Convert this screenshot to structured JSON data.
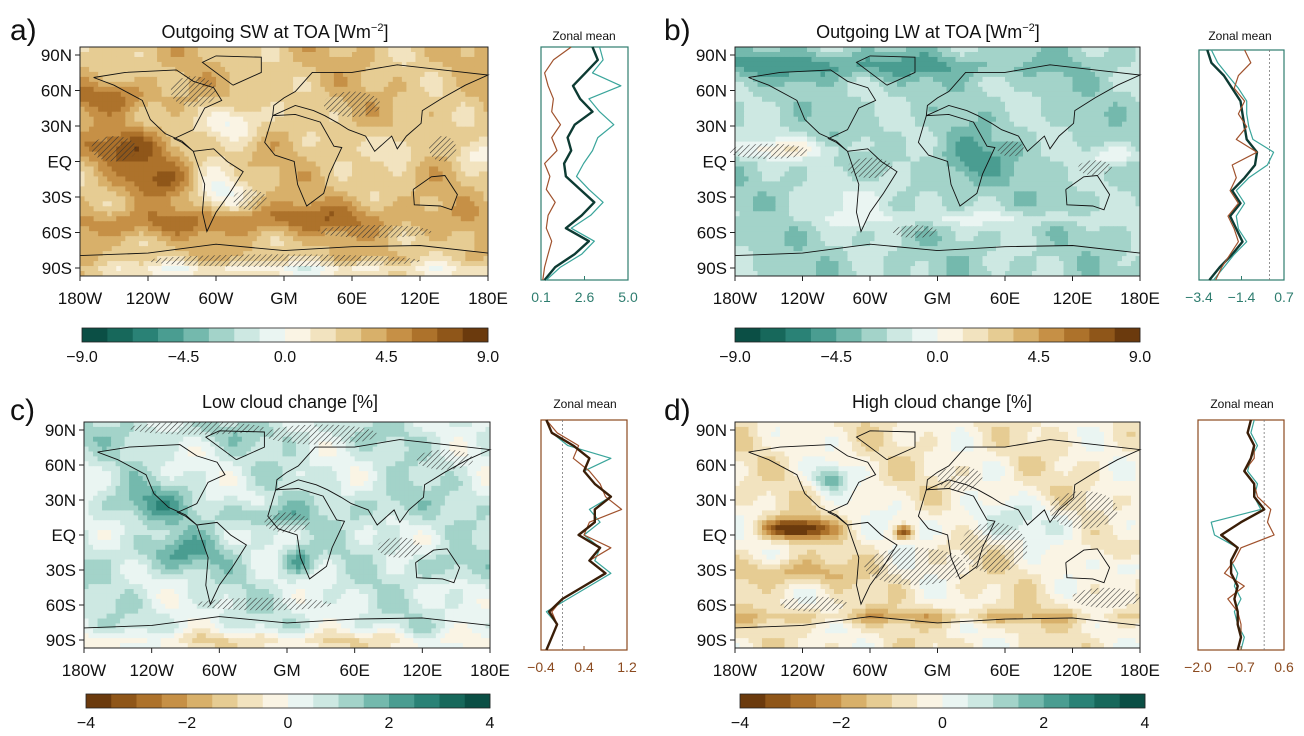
{
  "chart_data": [
    {
      "id": "a",
      "type": "heatmap",
      "panel_letter": "a)",
      "title_main": "Outgoing SW at TOA [Wm",
      "title_sup": "−2",
      "title_end": "]",
      "xtick_labels": [
        "180W",
        "120W",
        "60W",
        "GM",
        "60E",
        "120E",
        "180E"
      ],
      "ytick_labels": [
        "90N",
        "60N",
        "30N",
        "EQ",
        "30S",
        "60S",
        "90S"
      ],
      "colorbar": {
        "ticks": [
          "−9.0",
          "−4.5",
          "0.0",
          "4.5",
          "9.0"
        ],
        "range": [
          -9.0,
          9.0
        ],
        "palette": [
          "#0b4f45",
          "#17685b",
          "#2a8276",
          "#4a9d91",
          "#74b9ad",
          "#a3d3c9",
          "#cde8e2",
          "#eaf5f2",
          "#faf4e4",
          "#f2e3bf",
          "#e6cc93",
          "#d8b06a",
          "#c69046",
          "#ad722b",
          "#8f5619",
          "#6b3a0d"
        ]
      },
      "zonal_mean": {
        "label": "Zonal mean",
        "axis_color": "#2e7d6f",
        "xticks": [
          "0.1",
          "2.6",
          "5.0"
        ],
        "xlim": [
          0.1,
          5.0
        ],
        "lat": [
          90,
          80,
          70,
          60,
          50,
          40,
          30,
          20,
          10,
          0,
          -10,
          -20,
          -30,
          -40,
          -50,
          -60,
          -70,
          -80,
          -90
        ],
        "series": [
          {
            "color": "#0d3b33",
            "width": 2.4,
            "values": [
              3.0,
              3.3,
              2.6,
              1.9,
              2.3,
              3.0,
              2.0,
              1.6,
              1.8,
              1.4,
              1.5,
              2.3,
              3.1,
              2.4,
              1.5,
              2.8,
              2.0,
              0.9,
              0.3
            ]
          },
          {
            "color": "#3aa59b",
            "width": 1.2,
            "values": [
              3.4,
              3.6,
              3.0,
              4.6,
              2.8,
              3.4,
              4.2,
              3.3,
              3.0,
              2.5,
              2.1,
              2.8,
              3.6,
              2.9,
              1.8,
              3.1,
              2.4,
              1.2,
              0.4
            ]
          },
          {
            "color": "#a0522d",
            "width": 1.2,
            "values": [
              1.8,
              0.8,
              0.3,
              0.5,
              0.8,
              0.7,
              1.2,
              0.7,
              1.0,
              0.3,
              0.6,
              0.4,
              0.9,
              0.5,
              0.4,
              0.7,
              0.5,
              0.3,
              0.2
            ]
          }
        ]
      }
    },
    {
      "id": "b",
      "type": "heatmap",
      "panel_letter": "b)",
      "title_main": "Outgoing LW at TOA [Wm",
      "title_sup": "−2",
      "title_end": "]",
      "xtick_labels": [
        "180W",
        "120W",
        "60W",
        "GM",
        "60E",
        "120E",
        "180E"
      ],
      "ytick_labels": [
        "90N",
        "60N",
        "30N",
        "EQ",
        "30S",
        "60S",
        "90S"
      ],
      "colorbar": {
        "ticks": [
          "−9.0",
          "−4.5",
          "0.0",
          "4.5",
          "9.0"
        ],
        "range": [
          -9.0,
          9.0
        ],
        "palette": [
          "#0b4f45",
          "#17685b",
          "#2a8276",
          "#4a9d91",
          "#74b9ad",
          "#a3d3c9",
          "#cde8e2",
          "#eaf5f2",
          "#faf4e4",
          "#f2e3bf",
          "#e6cc93",
          "#d8b06a",
          "#c69046",
          "#ad722b",
          "#8f5619",
          "#6b3a0d"
        ]
      },
      "zonal_mean": {
        "label": "Zonal mean",
        "axis_color": "#2e7d6f",
        "xticks": [
          "−3.4",
          "−1.4",
          "0.7"
        ],
        "xlim": [
          -3.4,
          0.7
        ],
        "lat": [
          90,
          80,
          70,
          60,
          50,
          40,
          30,
          20,
          10,
          0,
          -10,
          -20,
          -30,
          -40,
          -50,
          -60,
          -70,
          -80,
          -90
        ],
        "series": [
          {
            "color": "#0d3b33",
            "width": 2.4,
            "values": [
              -3.0,
              -2.8,
              -2.2,
              -1.8,
              -1.4,
              -1.3,
              -1.2,
              -1.1,
              -0.6,
              -0.7,
              -1.2,
              -1.8,
              -1.4,
              -1.9,
              -1.6,
              -1.3,
              -1.8,
              -2.4,
              -2.9
            ]
          },
          {
            "color": "#3aa59b",
            "width": 1.2,
            "values": [
              -2.8,
              -2.5,
              -2.0,
              -1.5,
              -1.1,
              -1.1,
              -1.0,
              -0.8,
              0.2,
              -0.1,
              -1.0,
              -1.6,
              -1.2,
              -1.6,
              -1.5,
              -1.1,
              -1.7,
              -2.2,
              -2.7
            ]
          },
          {
            "color": "#a0522d",
            "width": 1.2,
            "values": [
              -1.2,
              -0.9,
              -1.5,
              -1.7,
              -1.2,
              -1.5,
              -1.1,
              -1.6,
              -0.6,
              -1.8,
              -1.6,
              -1.9,
              -1.5,
              -2.0,
              -1.7,
              -1.5,
              -1.9,
              -2.3,
              -2.6
            ]
          }
        ]
      }
    },
    {
      "id": "c",
      "type": "heatmap",
      "panel_letter": "c)",
      "title_main": "Low cloud change [%]",
      "title_sup": "",
      "title_end": "",
      "xtick_labels": [
        "180W",
        "120W",
        "60W",
        "GM",
        "60E",
        "120E",
        "180E"
      ],
      "ytick_labels": [
        "90N",
        "60N",
        "30N",
        "EQ",
        "30S",
        "60S",
        "90S"
      ],
      "colorbar": {
        "ticks": [
          "−4",
          "−2",
          "0",
          "2",
          "4"
        ],
        "range": [
          -4,
          4
        ],
        "palette": [
          "#6b3a0d",
          "#8f5619",
          "#ad722b",
          "#c69046",
          "#d8b06a",
          "#e6cc93",
          "#f2e3bf",
          "#faf4e4",
          "#eaf5f2",
          "#cde8e2",
          "#a3d3c9",
          "#74b9ad",
          "#4a9d91",
          "#2a8276",
          "#17685b",
          "#0b4f45"
        ]
      },
      "zonal_mean": {
        "label": "Zonal mean",
        "axis_color": "#8b4a1f",
        "xticks": [
          "−0.4",
          "0.4",
          "1.2"
        ],
        "xlim": [
          -0.4,
          1.2
        ],
        "lat": [
          90,
          80,
          70,
          60,
          50,
          40,
          30,
          20,
          10,
          0,
          -10,
          -20,
          -30,
          -40,
          -50,
          -60,
          -70,
          -80,
          -90
        ],
        "series": [
          {
            "color": "#3aa59b",
            "width": 1.2,
            "values": [
              -0.3,
              -0.2,
              0.1,
              0.9,
              0.4,
              0.6,
              0.9,
              0.5,
              0.7,
              0.4,
              0.7,
              0.6,
              0.9,
              0.5,
              0.1,
              -0.3,
              -0.1,
              -0.2,
              -0.3
            ]
          },
          {
            "color": "#a0522d",
            "width": 1.2,
            "values": [
              -0.3,
              -0.1,
              0.3,
              0.2,
              0.5,
              0.7,
              0.8,
              1.1,
              0.5,
              0.4,
              0.9,
              0.5,
              0.8,
              0.4,
              0.0,
              -0.2,
              -0.1,
              -0.2,
              -0.3
            ]
          },
          {
            "color": "#3a1e08",
            "width": 2.4,
            "values": [
              -0.3,
              -0.2,
              0.2,
              0.5,
              0.4,
              0.6,
              0.9,
              0.6,
              0.6,
              0.3,
              0.7,
              0.5,
              0.8,
              0.4,
              0.0,
              -0.25,
              -0.1,
              -0.2,
              -0.3
            ]
          }
        ]
      }
    },
    {
      "id": "d",
      "type": "heatmap",
      "panel_letter": "d)",
      "title_main": "High cloud change [%]",
      "title_sup": "",
      "title_end": "",
      "xtick_labels": [
        "180W",
        "120W",
        "60W",
        "GM",
        "60E",
        "120E",
        "180E"
      ],
      "ytick_labels": [
        "90N",
        "60N",
        "30N",
        "EQ",
        "30S",
        "60S",
        "90S"
      ],
      "colorbar": {
        "ticks": [
          "−4",
          "−2",
          "0",
          "2",
          "4"
        ],
        "range": [
          -4,
          4
        ],
        "palette": [
          "#6b3a0d",
          "#8f5619",
          "#ad722b",
          "#c69046",
          "#d8b06a",
          "#e6cc93",
          "#f2e3bf",
          "#faf4e4",
          "#eaf5f2",
          "#cde8e2",
          "#a3d3c9",
          "#74b9ad",
          "#4a9d91",
          "#2a8276",
          "#17685b",
          "#0b4f45"
        ]
      },
      "zonal_mean": {
        "label": "Zonal mean",
        "axis_color": "#8b4a1f",
        "xticks": [
          "−2.0",
          "−0.7",
          "0.6"
        ],
        "xlim": [
          -2.0,
          0.6
        ],
        "lat": [
          90,
          80,
          70,
          60,
          50,
          40,
          30,
          20,
          10,
          0,
          -10,
          -20,
          -30,
          -40,
          -50,
          -60,
          -70,
          -80,
          -90
        ],
        "series": [
          {
            "color": "#3aa59b",
            "width": 1.2,
            "values": [
              -0.3,
              -0.4,
              -0.2,
              -0.4,
              -0.5,
              -0.2,
              -0.3,
              -0.1,
              -1.6,
              -1.5,
              -0.8,
              -1.0,
              -0.8,
              -0.9,
              -0.7,
              -0.9,
              -0.8,
              -0.6,
              -0.7
            ]
          },
          {
            "color": "#a0522d",
            "width": 1.2,
            "values": [
              -0.4,
              -0.5,
              -0.3,
              -0.3,
              -0.6,
              -0.3,
              -0.2,
              0.2,
              0.1,
              0.3,
              -0.7,
              -0.9,
              -1.2,
              -0.6,
              -1.1,
              -0.8,
              -0.7,
              -0.7,
              -0.8
            ]
          },
          {
            "color": "#3a1e08",
            "width": 2.4,
            "values": [
              -0.4,
              -0.5,
              -0.3,
              -0.4,
              -0.6,
              -0.3,
              -0.3,
              0.0,
              -0.7,
              -1.3,
              -0.8,
              -1.0,
              -1.0,
              -0.8,
              -0.9,
              -0.8,
              -0.8,
              -0.7,
              -0.8
            ]
          }
        ]
      }
    }
  ]
}
